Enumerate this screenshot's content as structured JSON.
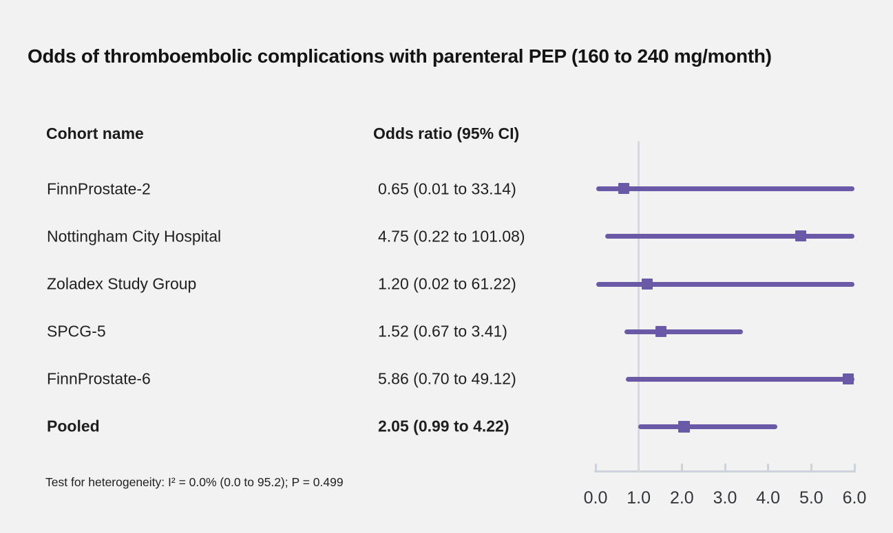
{
  "title": "Odds of thromboembolic complications with parenteral PEP (160 to 240 mg/month)",
  "columns": {
    "cohort": "Cohort name",
    "odds_ratio": "Odds ratio (95% CI)"
  },
  "rows": [
    {
      "cohort": "FinnProstate-2",
      "or_text": "0.65 (0.01 to 33.14)"
    },
    {
      "cohort": "Nottingham City Hospital",
      "or_text": "4.75 (0.22 to 101.08)"
    },
    {
      "cohort": "Zoladex Study Group",
      "or_text": "1.20 (0.02 to 61.22)"
    },
    {
      "cohort": "SPCG-5",
      "or_text": "1.52 (0.67 to 3.41)"
    },
    {
      "cohort": "FinnProstate-6",
      "or_text": "5.86 (0.70 to 49.12)"
    },
    {
      "cohort": "Pooled",
      "or_text": "2.05 (0.99 to 4.22)"
    }
  ],
  "footnote": "Test for heterogeneity: I² = 0.0% (0.0 to 95.2); P = 0.499",
  "chart_data": {
    "type": "forest",
    "title": "Odds of thromboembolic complications with parenteral PEP (160 to 240 mg/month)",
    "xlim": [
      0,
      6
    ],
    "reference_line": 1.0,
    "ticks": [
      0,
      1,
      2,
      3,
      4,
      5,
      6
    ],
    "tick_labels": [
      "0.0",
      "1.0",
      "2.0",
      "3.0",
      "4.0",
      "5.0",
      "6.0"
    ],
    "grid": false,
    "series": [
      {
        "name": "FinnProstate-2",
        "or": 0.65,
        "ci_low": 0.01,
        "ci_high": 33.14,
        "pooled": false
      },
      {
        "name": "Nottingham City Hospital",
        "or": 4.75,
        "ci_low": 0.22,
        "ci_high": 101.08,
        "pooled": false
      },
      {
        "name": "Zoladex Study Group",
        "or": 1.2,
        "ci_low": 0.02,
        "ci_high": 61.22,
        "pooled": false
      },
      {
        "name": "SPCG-5",
        "or": 1.52,
        "ci_low": 0.67,
        "ci_high": 3.41,
        "pooled": false
      },
      {
        "name": "FinnProstate-6",
        "or": 5.86,
        "ci_low": 0.7,
        "ci_high": 49.12,
        "pooled": false
      },
      {
        "name": "Pooled",
        "or": 2.05,
        "ci_low": 0.99,
        "ci_high": 4.22,
        "pooled": true
      }
    ],
    "colors": {
      "marker": "#6a59a6",
      "ci_line": "#6a59a6",
      "axis": "#ccd3da",
      "reference": "#d5d9e0",
      "background": "#f2f2f2",
      "text": "#1f1f1f"
    }
  }
}
